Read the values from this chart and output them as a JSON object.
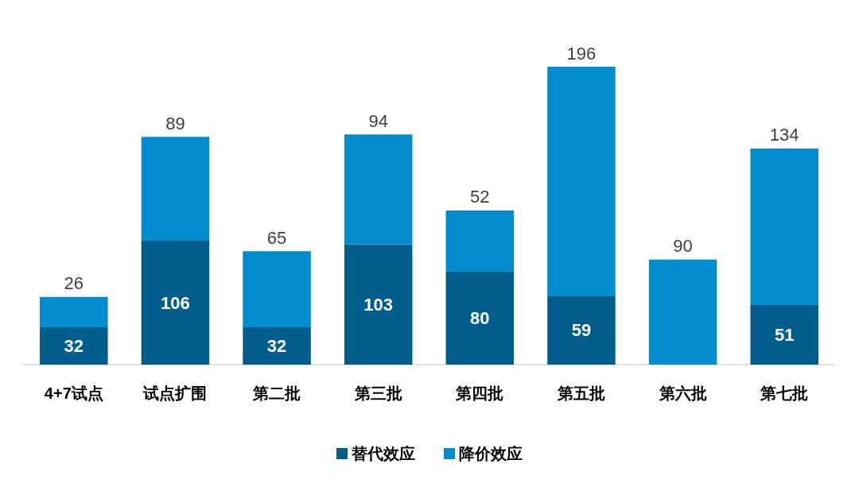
{
  "chart_data": {
    "type": "bar",
    "stacked": true,
    "data_labels": true,
    "legend": "bottom",
    "grid": false,
    "tick_labels": "x",
    "categories": [
      "4+7试点",
      "试点扩围",
      "第二批",
      "第三批",
      "第四批",
      "第五批",
      "第六批",
      "第七批"
    ],
    "series": [
      {
        "name": "替代效应",
        "color": "#005d8c",
        "values": [
          32,
          106,
          32,
          103,
          80,
          59,
          null,
          51
        ]
      },
      {
        "name": "降价效应",
        "color": "#008ccd",
        "values": [
          26,
          89,
          65,
          94,
          52,
          196,
          90,
          134
        ]
      }
    ]
  }
}
